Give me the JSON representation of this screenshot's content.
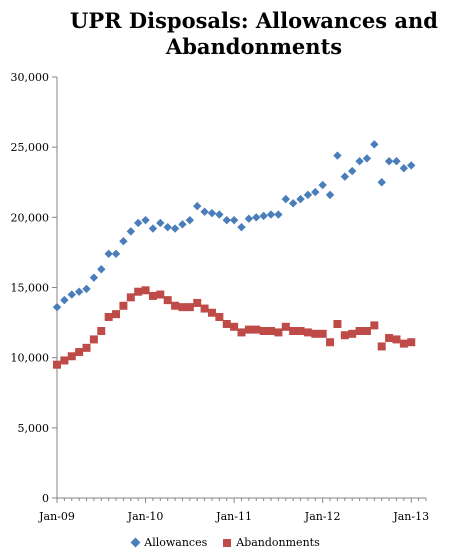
{
  "chart_data": {
    "type": "scatter",
    "title_lines": [
      "UPR Disposals: Allowances and",
      "Abandonments"
    ],
    "xlabel": "",
    "ylabel": "",
    "ylim": [
      0,
      30000
    ],
    "xlim": [
      "2009-01",
      "2013-03"
    ],
    "y_ticks": [
      "0",
      "5,000",
      "10,000",
      "15,000",
      "20,000",
      "25,000",
      "30,000"
    ],
    "x_ticks": [
      "Jan-09",
      "Jan-10",
      "Jan-11",
      "Jan-12",
      "Jan-13"
    ],
    "grid": false,
    "legend_position": "bottom",
    "x": [
      "2009-01",
      "2009-02",
      "2009-03",
      "2009-04",
      "2009-05",
      "2009-06",
      "2009-07",
      "2009-08",
      "2009-09",
      "2009-10",
      "2009-11",
      "2009-12",
      "2010-01",
      "2010-02",
      "2010-03",
      "2010-04",
      "2010-05",
      "2010-06",
      "2010-07",
      "2010-08",
      "2010-09",
      "2010-10",
      "2010-11",
      "2010-12",
      "2011-01",
      "2011-02",
      "2011-03",
      "2011-04",
      "2011-05",
      "2011-06",
      "2011-07",
      "2011-08",
      "2011-09",
      "2011-10",
      "2011-11",
      "2011-12",
      "2012-01",
      "2012-02",
      "2012-03",
      "2012-04",
      "2012-05",
      "2012-06",
      "2012-07",
      "2012-08",
      "2012-09",
      "2012-10",
      "2012-11",
      "2012-12",
      "2013-01",
      "2013-02"
    ],
    "series": [
      {
        "name": "Allowances",
        "color": "#4a7ebb",
        "marker": "diamond",
        "values": [
          13600,
          14100,
          14500,
          14700,
          14900,
          15700,
          16300,
          17400,
          17400,
          18300,
          19000,
          19600,
          19800,
          19200,
          19600,
          19300,
          19200,
          19500,
          19800,
          20800,
          20400,
          20300,
          20200,
          19800,
          19800,
          19300,
          19900,
          20000,
          20100,
          20200,
          20200,
          21300,
          21000,
          21300,
          21600,
          21800,
          22300,
          21600,
          24400,
          22900,
          23300,
          24000,
          24200,
          25200,
          22500,
          24000,
          24000,
          23500,
          23700,
          null
        ]
      },
      {
        "name": "Abandonments",
        "color": "#be4b48",
        "marker": "square",
        "values": [
          9500,
          9800,
          10100,
          10400,
          10700,
          11300,
          11900,
          12900,
          13100,
          13700,
          14300,
          14700,
          14800,
          14400,
          14500,
          14100,
          13700,
          13600,
          13600,
          13900,
          13500,
          13200,
          12900,
          12400,
          12200,
          11800,
          12000,
          12000,
          11900,
          11900,
          11800,
          12200,
          11900,
          11900,
          11800,
          11700,
          11700,
          11100,
          12400,
          11600,
          11700,
          11900,
          11900,
          12300,
          10800,
          11400,
          11300,
          11000,
          11100,
          null
        ]
      }
    ]
  }
}
